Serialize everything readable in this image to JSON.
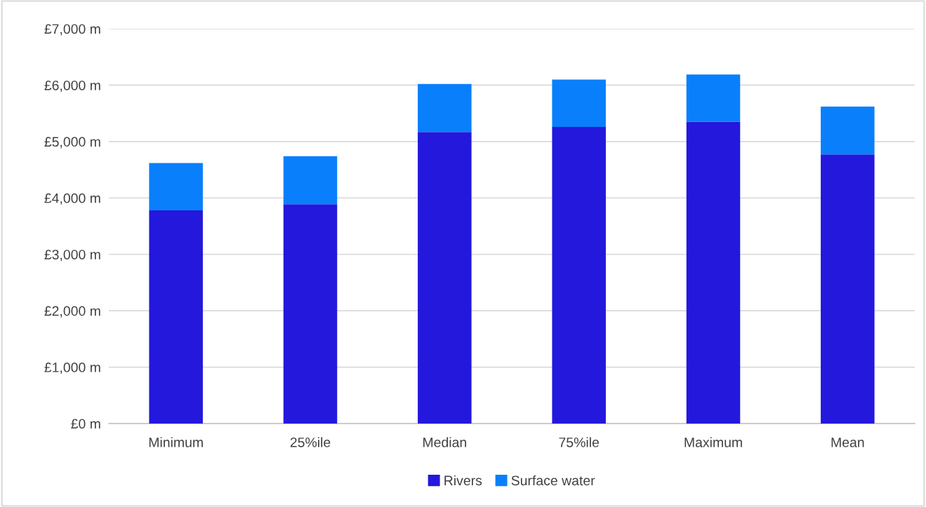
{
  "chart_data": {
    "type": "bar",
    "stacked": true,
    "categories": [
      "Minimum",
      "25%ile",
      "Median",
      "75%ile",
      "Maximum",
      "Mean"
    ],
    "series": [
      {
        "name": "Rivers",
        "color": "#2318dc",
        "values": [
          3780,
          3890,
          5170,
          5260,
          5350,
          4770
        ]
      },
      {
        "name": "Surface water",
        "color": "#0a7ffc",
        "values": [
          840,
          850,
          850,
          840,
          840,
          850
        ]
      }
    ],
    "ylim": [
      0,
      7000
    ],
    "yticks": [
      {
        "value": 0,
        "label": "£0 m"
      },
      {
        "value": 1000,
        "label": "£1,000 m"
      },
      {
        "value": 2000,
        "label": "£2,000 m"
      },
      {
        "value": 3000,
        "label": "£3,000 m"
      },
      {
        "value": 4000,
        "label": "£4,000 m"
      },
      {
        "value": 5000,
        "label": "£5,000 m"
      },
      {
        "value": 6000,
        "label": "£6,000 m"
      },
      {
        "value": 7000,
        "label": "£7,000 m"
      }
    ],
    "grid": "y",
    "legend": "bottom"
  }
}
